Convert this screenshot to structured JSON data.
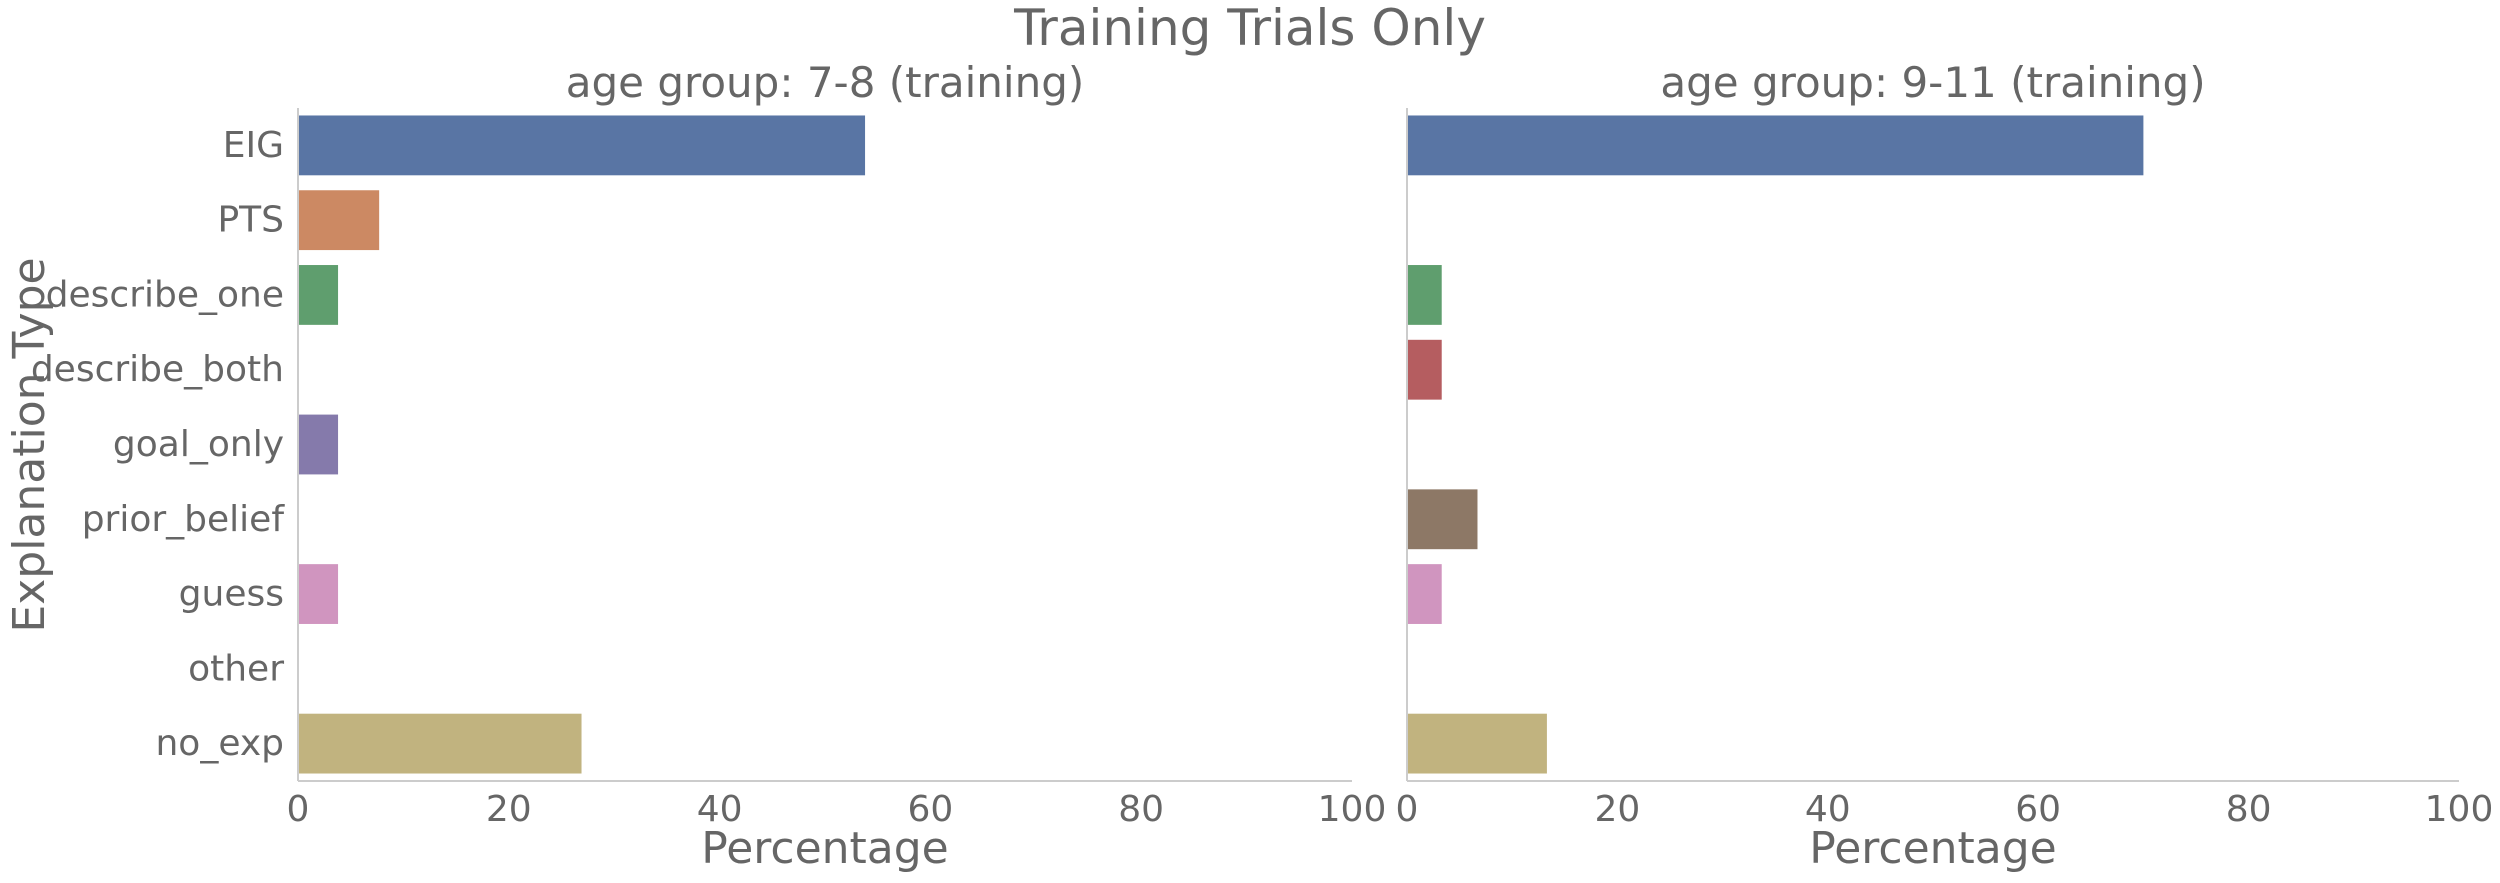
{
  "figure": {
    "title": "Training Trials Only",
    "ylabel": "Explanation Type"
  },
  "chart_data": [
    {
      "type": "bar",
      "orientation": "horizontal",
      "title": "age group: 7-8 (training)",
      "xlabel": "Percentage",
      "ylabel": "Explanation Type",
      "xlim": [
        0,
        100
      ],
      "xticks": [
        "0",
        "20",
        "40",
        "60",
        "80",
        "100"
      ],
      "categories": [
        "EIG",
        "PTS",
        "describe_one",
        "describe_both",
        "goal_only",
        "prior_belief",
        "guess",
        "other",
        "no_exp"
      ],
      "values": [
        53.8,
        7.7,
        3.8,
        0,
        3.8,
        0,
        3.8,
        0,
        26.9
      ],
      "colors": [
        "#5975a4",
        "#cc8963",
        "#5f9e6e",
        "#b55d60",
        "#857aab",
        "#8d7866",
        "#d095bf",
        "#8c8c8c",
        "#c1b37f"
      ],
      "grid": false
    },
    {
      "type": "bar",
      "orientation": "horizontal",
      "title": "age group: 9-11 (training)",
      "xlabel": "Percentage",
      "ylabel": "",
      "xlim": [
        0,
        100
      ],
      "xticks": [
        "0",
        "20",
        "40",
        "60",
        "80",
        "100"
      ],
      "categories": [
        "EIG",
        "PTS",
        "describe_one",
        "describe_both",
        "goal_only",
        "prior_belief",
        "guess",
        "other",
        "no_exp"
      ],
      "values": [
        70.0,
        0,
        3.3,
        3.3,
        0,
        6.7,
        3.3,
        0,
        13.3
      ],
      "colors": [
        "#5975a4",
        "#cc8963",
        "#5f9e6e",
        "#b55d60",
        "#857aab",
        "#8d7866",
        "#d095bf",
        "#8c8c8c",
        "#c1b37f"
      ],
      "grid": false
    }
  ]
}
